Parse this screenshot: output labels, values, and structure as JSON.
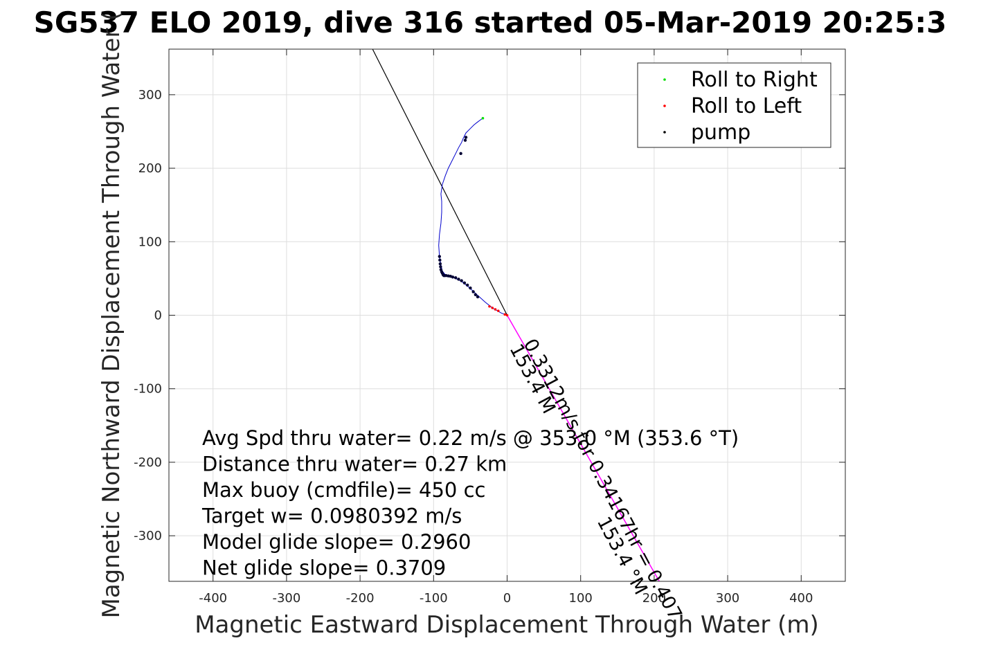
{
  "chart_data": {
    "type": "scatter",
    "title": "SG537 ELO 2019, dive 316 started 05-Mar-2019 20:25:3",
    "xlabel": "Magnetic Eastward Displacement Through Water (m)",
    "ylabel": "Magnetic Northward Displacement Through Water (",
    "xlim": [
      -460,
      460
    ],
    "ylim": [
      -362,
      362
    ],
    "xticks": [
      -400,
      -300,
      -200,
      -100,
      0,
      100,
      200,
      300,
      400
    ],
    "yticks": [
      -300,
      -200,
      -100,
      0,
      100,
      200,
      300
    ],
    "grid": true,
    "legend": {
      "placement": "top-right",
      "entries": [
        {
          "label": "Roll to Right",
          "color": "#00e000"
        },
        {
          "label": "Roll to Left",
          "color": "#ff0000"
        },
        {
          "label": "pump",
          "color": "#000000"
        }
      ]
    },
    "track": {
      "color": "#0000cc",
      "x": [
        0,
        -8,
        -20,
        -30,
        -40,
        -52,
        -62,
        -72,
        -80,
        -84,
        -88,
        -90,
        -92,
        -93,
        -92,
        -90,
        -89,
        -89,
        -90,
        -88,
        -84,
        -80,
        -75,
        -70,
        -66,
        -62,
        -60,
        -56,
        -50,
        -45,
        -40,
        -36,
        -33
      ],
      "y": [
        0,
        3,
        10,
        18,
        27,
        38,
        46,
        51,
        53,
        55,
        60,
        68,
        80,
        95,
        110,
        125,
        140,
        155,
        165,
        178,
        190,
        200,
        210,
        220,
        228,
        235,
        240,
        248,
        254,
        259,
        263,
        266,
        268
      ]
    },
    "roll_right_points": {
      "x": [
        -33
      ],
      "y": [
        268
      ]
    },
    "roll_left_points": {
      "x": [
        -12,
        -16,
        -20,
        -24,
        -3,
        0
      ],
      "y": [
        6,
        8,
        10,
        12,
        1,
        0
      ]
    },
    "pump_points": {
      "x": [
        -92,
        -91.5,
        -91,
        -90.5,
        -90,
        -89,
        -88,
        -87,
        -86,
        -85,
        -83,
        -80,
        -77,
        -74,
        -70,
        -66,
        -62,
        -58,
        -54,
        -50,
        -46,
        -43,
        -40,
        -57,
        -56,
        -63
      ],
      "y": [
        80,
        75,
        70,
        66,
        62,
        59,
        57,
        55,
        54,
        54,
        54,
        53.5,
        53,
        52,
        51,
        49,
        47,
        44,
        41,
        37,
        32,
        28,
        25,
        238,
        242,
        220
      ]
    },
    "heading_line": {
      "color": "#000000",
      "x": [
        0,
        -183
      ],
      "y": [
        0,
        362
      ]
    },
    "current_line": {
      "color": "#ff00ff",
      "x": [
        0,
        207
      ],
      "y": [
        0,
        -362
      ]
    },
    "rotated_labels": [
      {
        "text": "0.3312m/s for 0.34167hr = 0.407",
        "x": 22,
        "y": -38,
        "angle": 62
      },
      {
        "text": "153.4 M",
        "x": 3,
        "y": -45,
        "angle": 62
      },
      {
        "text": "153.4 °M",
        "x": 122,
        "y": -280,
        "angle": 62
      }
    ],
    "annotations": [
      "Avg Spd thru water=  0.22 m/s @ 353.0 °M (353.6 °T)",
      "Distance thru water=  0.27 km",
      "Max buoy (cmdfile)= 450 cc",
      "Target w= 0.0980392 m/s",
      "Model glide slope= 0.2960",
      "Net glide slope= 0.3709"
    ]
  }
}
